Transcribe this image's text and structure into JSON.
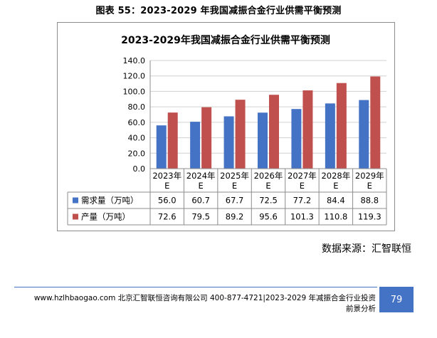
{
  "page": {
    "caption": "图表 55：2023-2029 年我国减振合金行业供需平衡预测",
    "source": "数据来源：汇智联恒",
    "footer_line1": "www.hzlhbaogao.com 北京汇智联恒咨询有限公司 400-877-4721|2023-2029 年减振合金行业投资",
    "footer_line2": "前景分析",
    "page_number": "79"
  },
  "chart_data": {
    "type": "bar",
    "title": "2023-2029年我国减振合金行业供需平衡预测",
    "categories": [
      [
        "2023年",
        "E"
      ],
      [
        "2024年",
        "E"
      ],
      [
        "2025年",
        "E"
      ],
      [
        "2026年",
        "E"
      ],
      [
        "2027年",
        "E"
      ],
      [
        "2028年",
        "E"
      ],
      [
        "2029年",
        "E"
      ]
    ],
    "series": [
      {
        "name": "需求量（万吨）",
        "color": "#4472c4",
        "values": [
          56.0,
          60.7,
          67.7,
          72.5,
          77.2,
          84.4,
          88.8
        ]
      },
      {
        "name": "产量（万吨）",
        "color": "#c0504d",
        "values": [
          72.6,
          79.5,
          89.2,
          95.6,
          101.3,
          110.8,
          119.3
        ]
      }
    ],
    "ylim": [
      0,
      140
    ],
    "yticks": [
      "0.0",
      "20.0",
      "40.0",
      "60.0",
      "80.0",
      "100.0",
      "120.0",
      "140.0"
    ],
    "grid": true,
    "legend": "data-table"
  }
}
